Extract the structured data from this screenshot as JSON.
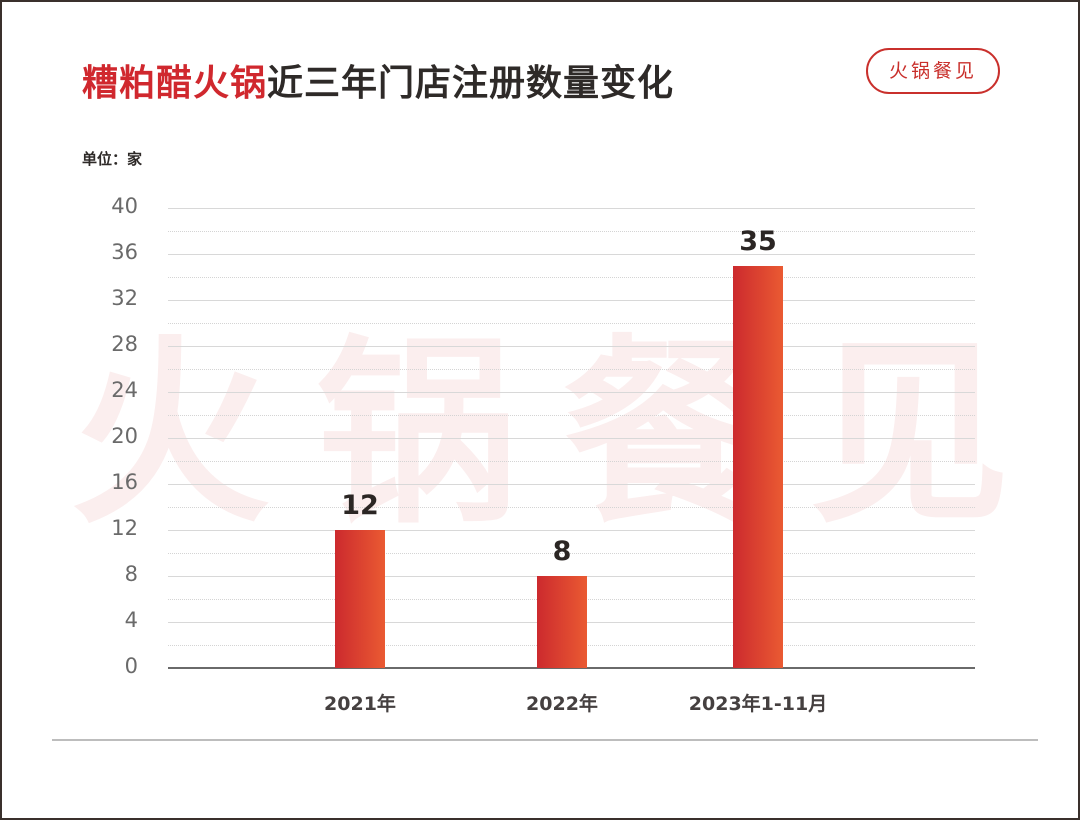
{
  "header": {
    "title_highlight": "糟粕醋火锅",
    "title_rest": "近三年门店注册数量变化",
    "badge": "火锅餐见",
    "unit_label": "单位：家"
  },
  "watermark": [
    "火",
    "锅",
    "餐",
    "见"
  ],
  "colors": {
    "title_red": "#d0282e",
    "bar_gradient_start": "#cc2a2e",
    "bar_gradient_end": "#ea5a32",
    "badge": "#c9302c"
  },
  "chart_data": {
    "type": "bar",
    "title": "糟粕醋火锅近三年门店注册数量变化",
    "xlabel": "",
    "ylabel": "单位：家",
    "categories": [
      "2021年",
      "2022年",
      "2023年1-11月"
    ],
    "values": [
      12,
      8,
      35
    ],
    "data_labels": [
      "12",
      "8",
      "35"
    ],
    "ylim": [
      0,
      40
    ],
    "yticks": [
      0,
      4,
      8,
      12,
      16,
      20,
      24,
      28,
      32,
      36,
      40
    ],
    "grid": true,
    "legend": null
  }
}
